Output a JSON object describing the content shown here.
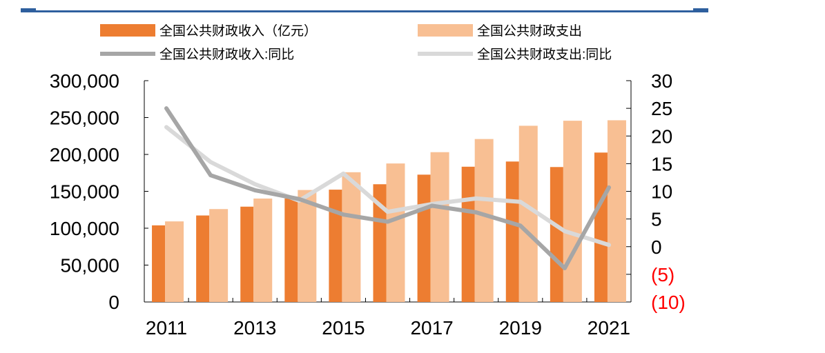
{
  "chart_data": {
    "type": "bar+line",
    "title": "",
    "categories": [
      "2011",
      "2012",
      "2013",
      "2014",
      "2015",
      "2016",
      "2017",
      "2018",
      "2019",
      "2020",
      "2021"
    ],
    "x_tick_labels": [
      "2011",
      "2013",
      "2015",
      "2017",
      "2019",
      "2021"
    ],
    "bar_series": [
      {
        "name": "全国公共财政收入（亿元）",
        "color": "#ed7d31",
        "values": [
          103874,
          117254,
          129210,
          140370,
          152269,
          159605,
          172593,
          183360,
          190390,
          182914,
          202539
        ]
      },
      {
        "name": "全国公共财政支出",
        "color": "#f8bf93",
        "values": [
          109248,
          125953,
          140212,
          151786,
          175878,
          187755,
          203085,
          220904,
          238858,
          245679,
          246322
        ]
      }
    ],
    "line_series": [
      {
        "name": "全国公共财政收入:同比",
        "color": "#a6a6a6",
        "values": [
          25.0,
          12.9,
          10.2,
          8.6,
          5.8,
          4.5,
          7.4,
          6.2,
          3.8,
          -3.9,
          10.7
        ]
      },
      {
        "name": "全国公共财政支出:同比",
        "color": "#d9d9d9",
        "values": [
          21.6,
          15.3,
          11.3,
          8.3,
          13.2,
          6.3,
          7.7,
          8.7,
          8.1,
          2.8,
          0.3
        ]
      }
    ],
    "left_axis": {
      "ylim": [
        0,
        300000
      ],
      "ticks": [
        0,
        50000,
        100000,
        150000,
        200000,
        250000,
        300000
      ],
      "tick_labels": [
        "0",
        "50,000",
        "100,000",
        "150,000",
        "200,000",
        "250,000",
        "300,000"
      ]
    },
    "right_axis": {
      "ylim": [
        -10,
        30
      ],
      "ticks": [
        -10,
        -5,
        0,
        5,
        10,
        15,
        20,
        25,
        30
      ],
      "tick_labels": [
        "(10)",
        "(5)",
        "0",
        "5",
        "10",
        "15",
        "20",
        "25",
        "30"
      ],
      "negative_color": "#ff0000"
    },
    "header_rule_color": "#2e5f9e",
    "legend": [
      {
        "label": "全国公共财政收入（亿元）",
        "kind": "bar",
        "color": "#ed7d31"
      },
      {
        "label": "全国公共财政支出",
        "kind": "bar",
        "color": "#f8bf93"
      },
      {
        "label": "全国公共财政收入:同比",
        "kind": "line",
        "color": "#a6a6a6"
      },
      {
        "label": "全国公共财政支出:同比",
        "kind": "line",
        "color": "#d9d9d9"
      }
    ]
  }
}
